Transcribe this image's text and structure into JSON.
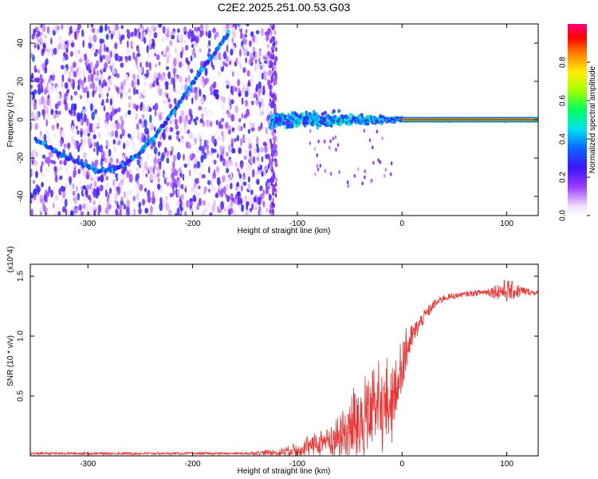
{
  "title": "C2E2.2025.251.00.53.G03",
  "chart_data": [
    {
      "type": "heatmap",
      "xlabel": "Height of straight line (km)",
      "ylabel": "Frequency (Hz)",
      "xlim": [
        -355,
        130
      ],
      "ylim": [
        -50,
        50
      ],
      "xticks": [
        -300,
        -200,
        -100,
        0,
        100
      ],
      "yticks": [
        -40,
        -20,
        0,
        20,
        40
      ],
      "grid": false,
      "colorbar": {
        "label": "Normalized spectral amplitude",
        "range": [
          0,
          1
        ],
        "ticks": [
          0.0,
          0.2,
          0.4,
          0.6,
          0.8
        ],
        "tick_labels": [
          "0.0",
          "0.2",
          "0.4",
          "0.6",
          "0.8"
        ],
        "colormap": "rainbow (white-violet-blue-cyan-green-yellow-red-magenta)"
      },
      "noise_region_x": [
        -355,
        -120
      ],
      "signal_trace": {
        "description": "phase-rate track bending from about -27 Hz near -290 km through -5 Hz near -230 km up to about 40 Hz near -170 km",
        "points": [
          {
            "x": -350,
            "y": -10
          },
          {
            "x": -330,
            "y": -17
          },
          {
            "x": -310,
            "y": -22
          },
          {
            "x": -290,
            "y": -27
          },
          {
            "x": -270,
            "y": -25
          },
          {
            "x": -250,
            "y": -17
          },
          {
            "x": -235,
            "y": -8
          },
          {
            "x": -220,
            "y": 3
          },
          {
            "x": -205,
            "y": 15
          },
          {
            "x": -190,
            "y": 27
          },
          {
            "x": -175,
            "y": 38
          },
          {
            "x": -165,
            "y": 46
          }
        ]
      },
      "band": {
        "description": "narrow band near 0 Hz from -125 km to 130 km, widening below 0 km and strongest (red) above 0 km",
        "center_hz": 0,
        "x_range": [
          -125,
          130
        ],
        "half_width_hz": [
          {
            "x": -120,
            "w": 6
          },
          {
            "x": -60,
            "w": 5
          },
          {
            "x": -20,
            "w": 3
          },
          {
            "x": 10,
            "w": 1.2
          },
          {
            "x": 130,
            "w": 1.2
          }
        ]
      }
    },
    {
      "type": "line",
      "xlabel": "Height of straight line (km)",
      "ylabel": "SNR (10 * v/v)",
      "y_multiplier": "(x10^4)",
      "xlim": [
        -355,
        130
      ],
      "ylim": [
        0,
        1.6
      ],
      "xticks": [
        -300,
        -200,
        -100,
        0,
        100
      ],
      "yticks": [
        0.5,
        1.0,
        1.5
      ],
      "ytick_labels": [
        "0.5",
        "1.0",
        "1.5"
      ],
      "grid": false,
      "series": [
        {
          "color": "#ee3333",
          "x": [
            -355,
            -300,
            -250,
            -200,
            -150,
            -120,
            -100,
            -80,
            -60,
            -40,
            -30,
            -20,
            -10,
            0,
            10,
            20,
            30,
            40,
            60,
            80,
            100,
            120,
            130
          ],
          "y": [
            0.02,
            0.02,
            0.02,
            0.02,
            0.02,
            0.03,
            0.08,
            0.14,
            0.22,
            0.4,
            0.5,
            0.55,
            0.6,
            0.8,
            1.0,
            1.15,
            1.26,
            1.32,
            1.35,
            1.37,
            1.38,
            1.37,
            1.36
          ],
          "noise_amplitude": [
            0.01,
            0.01,
            0.01,
            0.01,
            0.01,
            0.03,
            0.08,
            0.12,
            0.22,
            0.5,
            0.5,
            0.5,
            0.4,
            0.25,
            0.1,
            0.06,
            0.04,
            0.03,
            0.02,
            0.03,
            0.1,
            0.03,
            0.02
          ]
        }
      ]
    }
  ]
}
